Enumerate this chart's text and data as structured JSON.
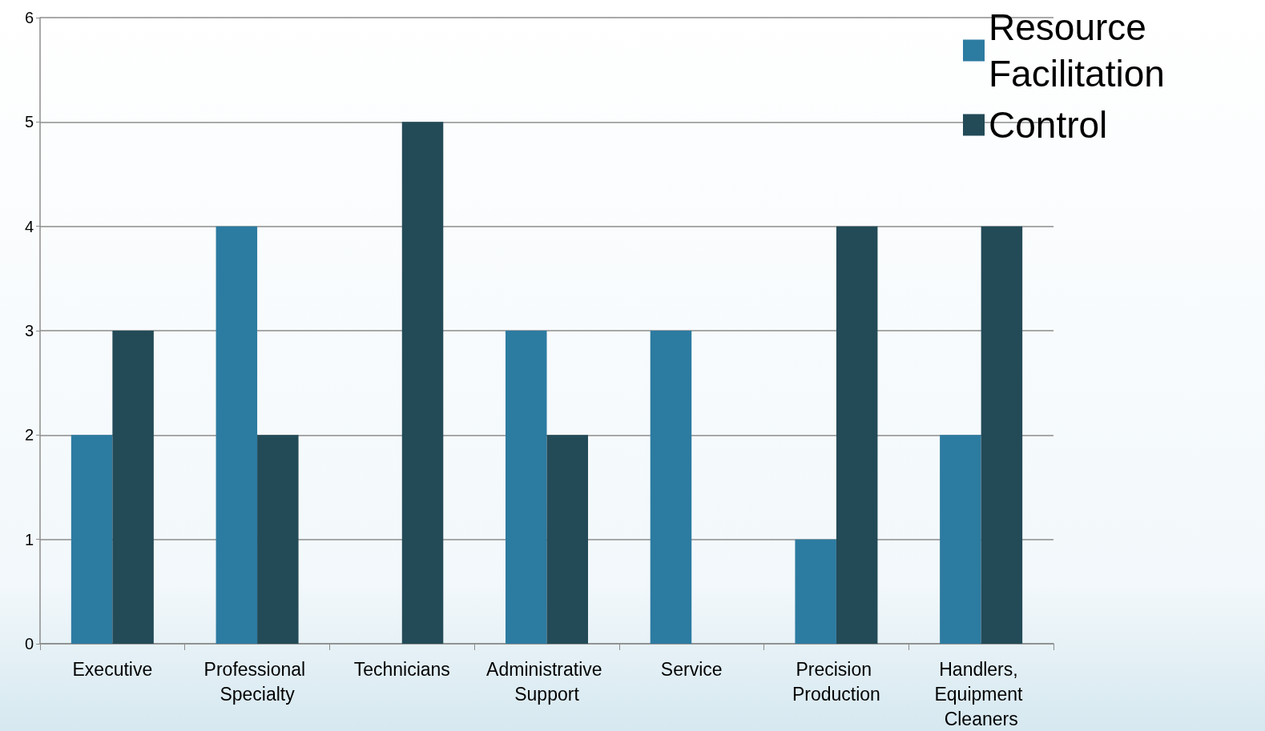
{
  "chart_data": {
    "type": "bar",
    "categories": [
      "Executive",
      "Professional Specialty",
      "Technicians",
      "Administrative Support",
      "Service",
      "Precision Production",
      "Handlers, Equipment Cleaners"
    ],
    "series": [
      {
        "name": "Resource Facilitation",
        "color": "#2c7ba1",
        "values": [
          2,
          4,
          0,
          3,
          3,
          1,
          2
        ]
      },
      {
        "name": "Control",
        "color": "#234a57",
        "values": [
          3,
          2,
          5,
          2,
          0,
          4,
          4
        ]
      }
    ],
    "ylim": [
      0,
      6
    ],
    "yticks": [
      0,
      1,
      2,
      3,
      4,
      5,
      6
    ],
    "grid": "y",
    "legend": "top right"
  }
}
